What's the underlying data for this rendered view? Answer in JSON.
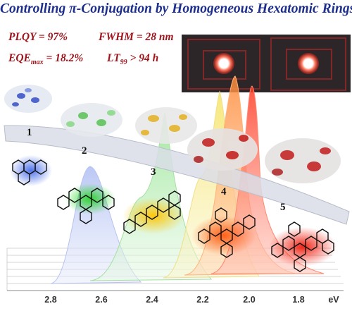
{
  "title": "Controlling π-Conjugation by Homogeneous Hexatomic Rings",
  "metrics": {
    "plqy": "PLQY  =  97%",
    "fwhm": "FWHM = 28 nm",
    "eqe_prefix": "EQE",
    "eqe_sub": "max",
    "eqe_value": " = 18.2%",
    "lt_prefix": "LT",
    "lt_sub": "99",
    "lt_value": " > 94 h"
  },
  "molecules": [
    "1",
    "2",
    "3",
    "4",
    "5"
  ],
  "axis": {
    "ticks": [
      "2.8",
      "2.6",
      "2.4",
      "2.2",
      "2.0",
      "1.8"
    ],
    "unit": "eV"
  },
  "colors": {
    "title": "#1d2f8c",
    "metrics": "#a0141b",
    "mol1": "#2e59d6",
    "mol2": "#28c62b",
    "mol3": "#f0b400",
    "mol4": "#f06a1a",
    "mol5": "#e02a18"
  }
}
